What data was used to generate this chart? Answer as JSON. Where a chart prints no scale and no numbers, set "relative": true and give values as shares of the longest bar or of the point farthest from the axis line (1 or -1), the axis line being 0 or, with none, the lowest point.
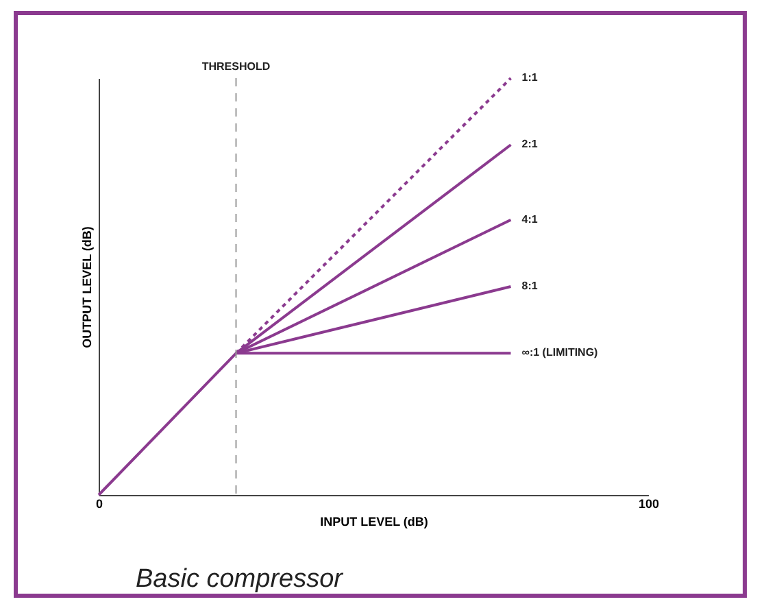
{
  "chart_data": {
    "type": "line",
    "title": "Basic compressor",
    "xlabel": "INPUT LEVEL (dB)",
    "ylabel": "OUTPUT LEVEL (dB)",
    "relative": true,
    "xlim": [
      0,
      100
    ],
    "xticks": [
      0,
      100
    ],
    "grid": false,
    "legend": false,
    "marker": "none",
    "series": [
      {
        "name": "1:1",
        "color": "#8b3a8f",
        "line_style": "dotted",
        "x": [
          25,
          75
        ],
        "values": [
          0.34,
          1
        ]
      },
      {
        "name": "2:1",
        "color": "#8b3a8f",
        "x": [
          25,
          75
        ],
        "values": [
          0.34,
          0.84
        ]
      },
      {
        "name": "4:1",
        "color": "#8b3a8f",
        "x": [
          25,
          75
        ],
        "values": [
          0.34,
          0.66
        ]
      },
      {
        "name": "8:1",
        "color": "#8b3a8f",
        "x": [
          25,
          75
        ],
        "values": [
          0.34,
          0.5
        ]
      },
      {
        "name": "∞:1 (LIMITING)",
        "color": "#8b3a8f",
        "x": [
          0,
          25,
          75
        ],
        "values": [
          0,
          0.34,
          0.34
        ]
      }
    ],
    "ref_lines": [
      {
        "axis": "x",
        "value": 25,
        "label": "THRESHOLD",
        "color": "#999999",
        "line_style": "dashed"
      }
    ]
  }
}
